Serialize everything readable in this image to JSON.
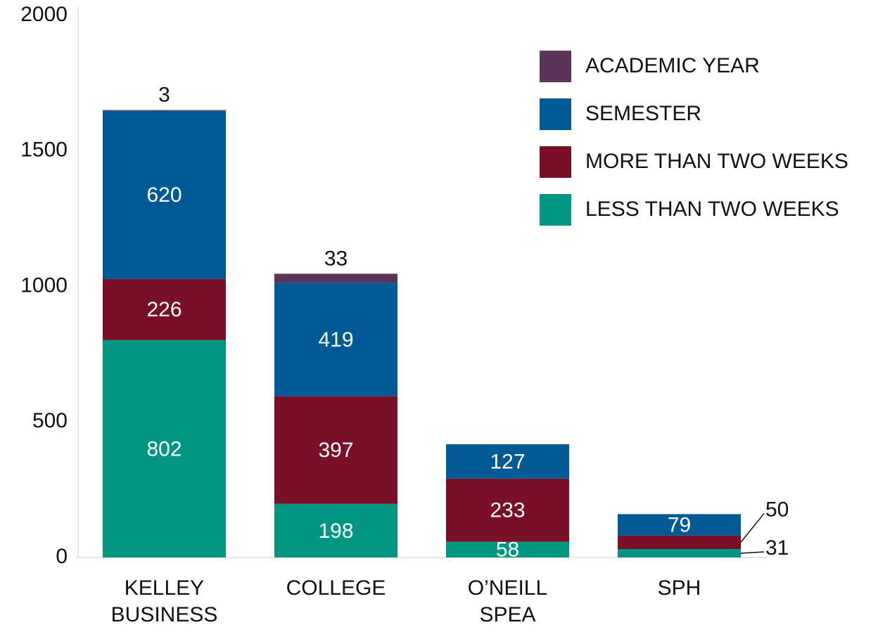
{
  "chart_data": {
    "type": "stacked_bar",
    "categories": [
      "KELLEY BUSINESS",
      "COLLEGE",
      "O’NEILL SPEA",
      "SPH"
    ],
    "series": [
      {
        "name": "LESS THAN TWO WEEKS",
        "color": "#009682",
        "values": [
          802,
          198,
          58,
          31
        ]
      },
      {
        "name": "MORE THAN TWO WEEKS",
        "color": "#7a1028",
        "values": [
          226,
          397,
          233,
          50
        ]
      },
      {
        "name": "SEMESTER",
        "color": "#005a96",
        "values": [
          620,
          419,
          127,
          79
        ]
      },
      {
        "name": "ACADEMIC YEAR",
        "color": "#5a3557",
        "values": [
          3,
          33,
          null,
          null
        ]
      }
    ],
    "ylim": [
      0,
      2000
    ],
    "yticks": [
      0,
      500,
      1000,
      1500,
      2000
    ],
    "grid": false,
    "legend": "upper right"
  }
}
